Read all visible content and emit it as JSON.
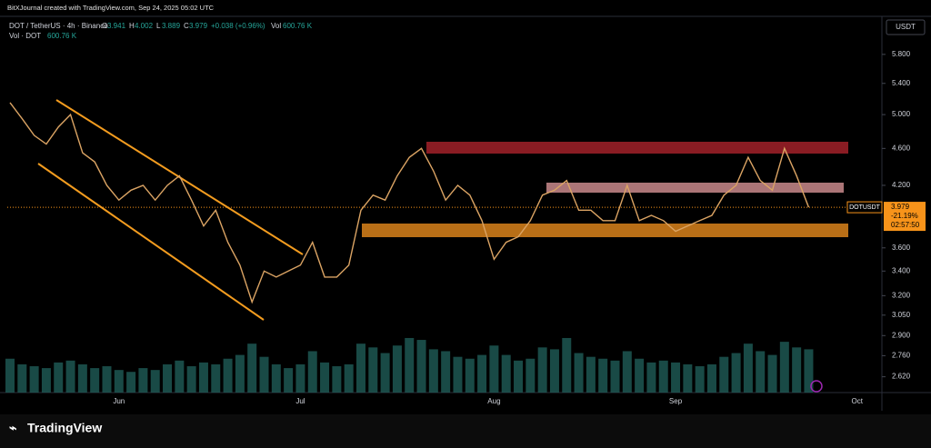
{
  "header": {
    "credit": "BitXJournal created with TradingView.com, Sep 24, 2025 05:02 UTC",
    "symbol": "DOT / TetherUS · 4h · Binance",
    "ohlc": [
      {
        "key": "O",
        "value": "3.941"
      },
      {
        "key": "H",
        "value": "4.002"
      },
      {
        "key": "L",
        "value": "3.889"
      },
      {
        "key": "C",
        "value": "3.979"
      }
    ],
    "change": "+0.038 (+0.96%)",
    "vol_key": "Vol",
    "vol_value": "600.76 K"
  },
  "volume_legend": {
    "label": "Vol · DOT",
    "value": "600.76 K"
  },
  "footer": {
    "brand": "TradingView"
  },
  "chart_data": {
    "type": "line",
    "log_scale": true,
    "color": "#dba464",
    "currency": "USDT",
    "symbol_tag": "DOTUSDT",
    "change_tag": "-21.19%",
    "countdown": "02:57:50",
    "categories": [
      null,
      null,
      null,
      null,
      null,
      null,
      null,
      null,
      null,
      "Jun",
      null,
      null,
      null,
      null,
      null,
      null,
      null,
      null,
      null,
      null,
      null,
      null,
      null,
      null,
      "Jul",
      null,
      null,
      null,
      null,
      null,
      null,
      null,
      null,
      null,
      null,
      null,
      null,
      null,
      null,
      null,
      "Aug",
      null,
      null,
      null,
      null,
      null,
      null,
      null,
      null,
      null,
      null,
      null,
      null,
      null,
      null,
      "Sep",
      null,
      null,
      null,
      null,
      null,
      null,
      null,
      null,
      null,
      null,
      null,
      null,
      null,
      null,
      "Oct"
    ],
    "values": [
      5.15,
      4.95,
      4.75,
      4.65,
      4.85,
      5.0,
      4.55,
      4.45,
      4.2,
      4.05,
      4.15,
      4.2,
      4.05,
      4.2,
      4.3,
      4.05,
      3.8,
      3.95,
      3.65,
      3.45,
      3.15,
      3.4,
      3.35,
      3.4,
      3.45,
      3.65,
      3.35,
      3.35,
      3.45,
      3.95,
      4.1,
      4.05,
      4.3,
      4.5,
      4.6,
      4.35,
      4.05,
      4.2,
      4.1,
      3.85,
      3.5,
      3.65,
      3.7,
      3.85,
      4.1,
      4.15,
      4.25,
      3.95,
      3.95,
      3.85,
      3.85,
      4.2,
      3.85,
      3.9,
      3.85,
      3.75,
      3.8,
      3.85,
      3.9,
      4.1,
      4.2,
      4.5,
      4.25,
      4.15,
      4.6,
      4.3,
      3.979,
      null,
      null,
      null,
      null
    ],
    "volume": {
      "color": "#1f5c57",
      "values": [
        1800,
        1500,
        1400,
        1300,
        1600,
        1700,
        1500,
        1300,
        1400,
        1200,
        1100,
        1300,
        1200,
        1500,
        1700,
        1400,
        1600,
        1500,
        1800,
        2000,
        2600,
        1900,
        1500,
        1300,
        1500,
        2200,
        1600,
        1400,
        1500,
        2600,
        2400,
        2100,
        2500,
        2900,
        2800,
        2300,
        2200,
        1900,
        1800,
        2000,
        2500,
        2000,
        1700,
        1800,
        2400,
        2300,
        2900,
        2100,
        1900,
        1800,
        1700,
        2200,
        1800,
        1600,
        1700,
        1600,
        1500,
        1400,
        1500,
        1900,
        2100,
        2600,
        2200,
        2000,
        2700,
        2400,
        2300,
        null,
        null,
        null,
        null
      ]
    },
    "y2lim": [
      0,
      20000
    ],
    "ylim": [
      2.52,
      6.37
    ],
    "yticks": [
      {
        "value": 5.8,
        "label": "5.800"
      },
      {
        "value": 5.4,
        "label": "5.400"
      },
      {
        "value": 5.0,
        "label": "5.000"
      },
      {
        "value": 4.6,
        "label": "4.600"
      },
      {
        "value": 4.2,
        "label": "4.200"
      },
      {
        "value": 3.6,
        "label": "3.600"
      },
      {
        "value": 3.4,
        "label": "3.400"
      },
      {
        "value": 3.2,
        "label": "3.200"
      },
      {
        "value": 3.05,
        "label": "3.050"
      },
      {
        "value": 2.9,
        "label": "2.900"
      },
      {
        "value": 2.76,
        "label": "2.760"
      },
      {
        "value": 2.62,
        "label": "2.620"
      }
    ]
  }
}
